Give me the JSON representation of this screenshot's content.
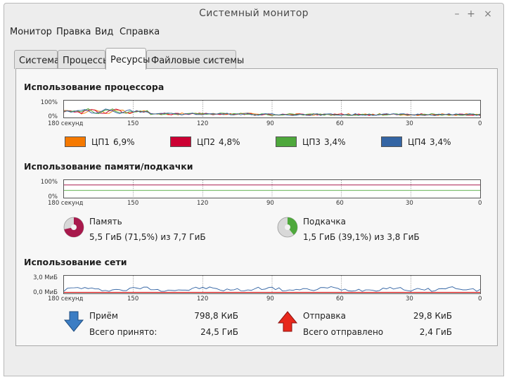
{
  "window": {
    "title": "Системный монитор",
    "minimize": "–",
    "maximize": "+",
    "close": "×"
  },
  "menu": [
    "Монитор",
    "Правка",
    "Вид",
    "Справка"
  ],
  "tabs": [
    "Система",
    "Процессы",
    "Ресурсы",
    "Файловые системы"
  ],
  "active_tab": "Ресурсы",
  "time_ticks": [
    "180 секунд",
    "150",
    "120",
    "90",
    "60",
    "30",
    "0"
  ],
  "cpu": {
    "title": "Использование процессора",
    "y_top": "100%",
    "y_bottom": "0%",
    "cores": [
      {
        "name": "ЦП1",
        "value": "6,9%",
        "color": "#f57900"
      },
      {
        "name": "ЦП2",
        "value": "4,8%",
        "color": "#cc0033"
      },
      {
        "name": "ЦП3",
        "value": "3,4%",
        "color": "#4ea83c"
      },
      {
        "name": "ЦП4",
        "value": "3,4%",
        "color": "#3465a4"
      }
    ]
  },
  "memory": {
    "title": "Использование памяти/подкачки",
    "y_top": "100%",
    "y_bottom": "0%",
    "mem_label": "Память",
    "mem_value": "5,5 ГиБ (71,5%) из 7,7 ГиБ",
    "mem_fraction": 0.715,
    "mem_color": "#a8194c",
    "swap_label": "Подкачка",
    "swap_value": "1,5 ГиБ (39,1%) из 3,8 ГиБ",
    "swap_fraction": 0.391,
    "swap_color": "#4ea83c"
  },
  "network": {
    "title": "Использование сети",
    "y_top": "3,0 МиБ",
    "y_bottom": "0,0 МиБ",
    "recv_label": "Приём",
    "recv_value": "798,8 КиБ",
    "recv_total_label": "Всего принято:",
    "recv_total_value": "24,5 ГиБ",
    "send_label": "Отправка",
    "send_value": "29,8 КиБ",
    "send_total_label": "Всего отправлено",
    "send_total_value": "2,4 ГиБ",
    "recv_color": "#3465a4",
    "send_color": "#cc0000"
  }
}
